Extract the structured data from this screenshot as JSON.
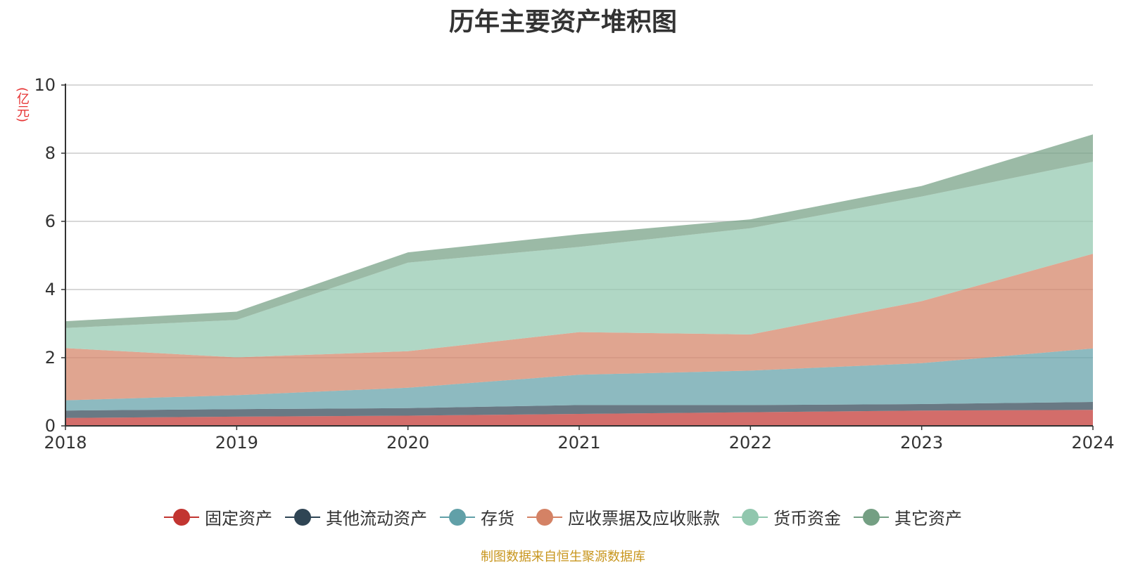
{
  "chart_data": {
    "type": "area",
    "stacked": true,
    "title": "历年主要资产堆积图",
    "ylabel": "(亿元)",
    "xlabel": "",
    "ylim": [
      0,
      10
    ],
    "yticks": [
      0,
      2,
      4,
      6,
      8,
      10
    ],
    "grid": true,
    "legend_position": "bottom",
    "categories": [
      "2018",
      "2019",
      "2020",
      "2021",
      "2022",
      "2023",
      "2024"
    ],
    "series": [
      {
        "name": "固定资产",
        "color": "#c23531",
        "values": [
          0.23,
          0.27,
          0.3,
          0.35,
          0.4,
          0.45,
          0.47
        ]
      },
      {
        "name": "其他流动资产",
        "color": "#2f4554",
        "values": [
          0.22,
          0.22,
          0.22,
          0.26,
          0.21,
          0.19,
          0.23
        ]
      },
      {
        "name": "存货",
        "color": "#61a0a8",
        "values": [
          0.3,
          0.41,
          0.6,
          0.89,
          1.01,
          1.2,
          1.57
        ]
      },
      {
        "name": "应收票据及应收账款",
        "color": "#d48265",
        "values": [
          1.53,
          1.11,
          1.07,
          1.25,
          1.06,
          1.82,
          2.78
        ]
      },
      {
        "name": "货币资金",
        "color": "#91c7ae",
        "values": [
          0.59,
          1.1,
          2.6,
          2.5,
          3.12,
          3.07,
          2.7
        ]
      },
      {
        "name": "其它资产",
        "color": "#749f83",
        "values": [
          0.2,
          0.24,
          0.3,
          0.37,
          0.26,
          0.31,
          0.8
        ]
      }
    ],
    "source": "制图数据来自恒生聚源数据库"
  }
}
